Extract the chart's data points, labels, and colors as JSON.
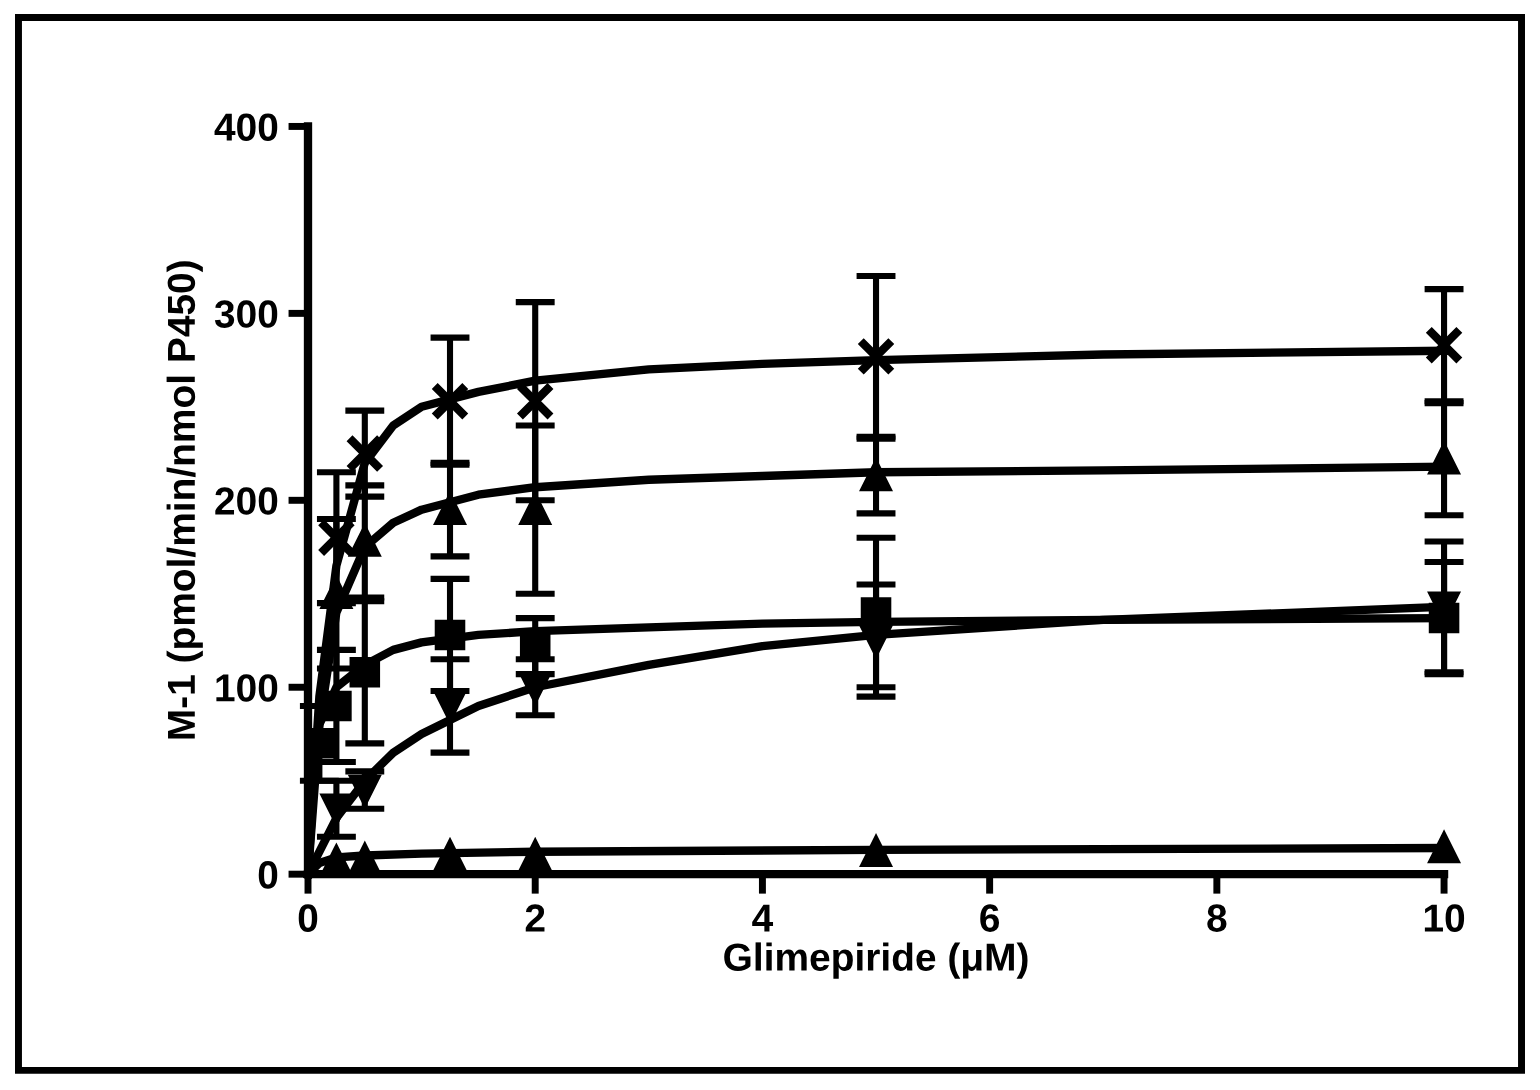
{
  "chart_data": {
    "type": "scatter",
    "xlabel": "Glimepiride (μM)",
    "ylabel": "M-1 (pmol/min/nmol P450)",
    "xlim": [
      0,
      10
    ],
    "ylim": [
      0,
      400
    ],
    "xticks": [
      0,
      2,
      4,
      6,
      8,
      10
    ],
    "yticks": [
      0,
      100,
      200,
      300,
      400
    ],
    "grid": false,
    "legend": false,
    "x": [
      0.1,
      0.25,
      0.5,
      1.25,
      2,
      5,
      10
    ],
    "series": [
      {
        "color": "#000000",
        "marker": "cross",
        "values": [
          null,
          180,
          225,
          253,
          253,
          277,
          283
        ],
        "errors": [
          null,
          35,
          23,
          34,
          53,
          43,
          30
        ]
      },
      {
        "color": "#000000",
        "marker": "triangle",
        "values": [
          null,
          150,
          178,
          195,
          195,
          213,
          222
        ],
        "errors": [
          null,
          40,
          30,
          25,
          45,
          20,
          30
        ]
      },
      {
        "color": "#000000",
        "marker": "square",
        "values": [
          70,
          90,
          108,
          128,
          122,
          140,
          137
        ],
        "errors": [
          20,
          30,
          38,
          30,
          15,
          40,
          30
        ]
      },
      {
        "color": "#000000",
        "marker": "triangle_down",
        "values": [
          null,
          35,
          45,
          90,
          100,
          125,
          143
        ],
        "errors": [
          null,
          15,
          10,
          25,
          15,
          30,
          35
        ]
      },
      {
        "color": "#000000",
        "marker": "triangle",
        "values": [
          null,
          7,
          8,
          10,
          10,
          12,
          14
        ],
        "errors": [
          null,
          null,
          null,
          null,
          null,
          null,
          null
        ]
      },
      {
        "type": "line",
        "color": "#000000",
        "marker": "none",
        "x": [
          0,
          0.1,
          0.25,
          0.5,
          0.75,
          1,
          1.5,
          2,
          3,
          4,
          5,
          7,
          10
        ],
        "values": [
          0,
          95,
          165,
          220,
          240,
          250,
          258,
          264,
          270,
          273,
          275,
          278,
          280
        ]
      },
      {
        "type": "line",
        "color": "#000000",
        "marker": "none",
        "x": [
          0,
          0.1,
          0.25,
          0.5,
          0.75,
          1,
          1.5,
          2,
          3,
          4,
          5,
          7,
          10
        ],
        "values": [
          0,
          80,
          140,
          175,
          188,
          195,
          203,
          207,
          211,
          213,
          215,
          216,
          218
        ]
      },
      {
        "type": "line",
        "color": "#000000",
        "marker": "none",
        "x": [
          0,
          0.05,
          0.1,
          0.25,
          0.5,
          0.75,
          1,
          1.5,
          2,
          3,
          4,
          5,
          7,
          10
        ],
        "values": [
          0,
          55,
          80,
          100,
          112,
          120,
          124,
          128,
          130,
          132,
          134,
          135,
          136,
          137
        ]
      },
      {
        "type": "line",
        "color": "#000000",
        "marker": "none",
        "x": [
          0,
          0.25,
          0.5,
          0.75,
          1,
          1.5,
          2,
          3,
          4,
          5,
          7,
          10
        ],
        "values": [
          0,
          30,
          50,
          65,
          75,
          90,
          100,
          112,
          122,
          128,
          136,
          143
        ]
      },
      {
        "type": "line",
        "color": "#000000",
        "marker": "none",
        "x": [
          0,
          0.1,
          0.25,
          0.5,
          1,
          2,
          5,
          10
        ],
        "values": [
          0,
          6,
          9,
          10,
          11,
          12,
          13,
          14
        ]
      }
    ]
  }
}
